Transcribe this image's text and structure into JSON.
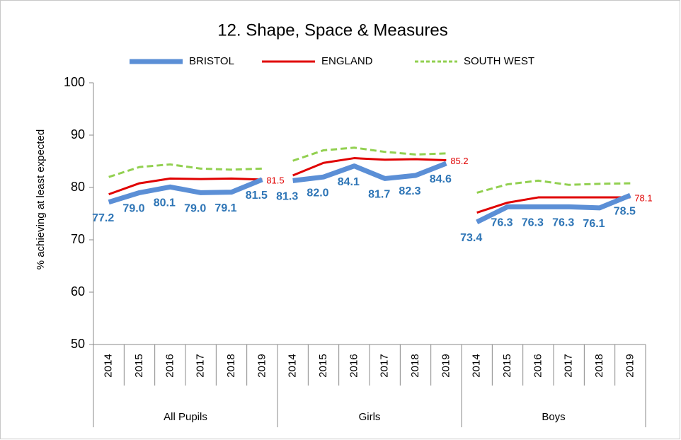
{
  "chart_data": {
    "type": "line",
    "title": "12. Shape, Space & Measures",
    "y_label": "% achieving at least expected",
    "groups": [
      "All Pupils",
      "Girls",
      "Boys"
    ],
    "categories": [
      [
        "2014",
        "2015",
        "2016",
        "2017",
        "2018",
        "2019"
      ],
      [
        "2014",
        "2015",
        "2016",
        "2017",
        "2018",
        "2019"
      ],
      [
        "2014",
        "2015",
        "2016",
        "2017",
        "2018",
        "2019"
      ]
    ],
    "series": [
      {
        "name": "BRISTOL",
        "color": "#5b8fd6",
        "style": "solid",
        "width": 7,
        "values": [
          [
            77.2,
            79.0,
            80.1,
            79.0,
            79.1,
            81.5
          ],
          [
            81.3,
            82.0,
            84.1,
            81.7,
            82.3,
            84.6
          ],
          [
            73.4,
            76.3,
            76.3,
            76.3,
            76.1,
            78.5
          ]
        ],
        "value_labels": [
          [
            "77.2",
            "79.0",
            "80.1",
            "79.0",
            "79.1",
            "81.5"
          ],
          [
            "81.3",
            "82.0",
            "84.1",
            "81.7",
            "82.3",
            "84.6"
          ],
          [
            "73.4",
            "76.3",
            "76.3",
            "76.3",
            "76.1",
            "78.5"
          ]
        ]
      },
      {
        "name": "ENGLAND",
        "color": "#e00000",
        "style": "solid",
        "width": 3,
        "values": [
          [
            78.7,
            80.8,
            81.7,
            81.6,
            81.7,
            81.5
          ],
          [
            82.3,
            84.7,
            85.6,
            85.3,
            85.4,
            85.2
          ],
          [
            75.2,
            77.1,
            78.1,
            78.1,
            78.1,
            78.1
          ]
        ],
        "value_labels": [
          [
            null,
            null,
            null,
            null,
            null,
            "81.5"
          ],
          [
            null,
            null,
            null,
            null,
            null,
            "85.2"
          ],
          [
            null,
            null,
            null,
            null,
            null,
            "78.1"
          ]
        ]
      },
      {
        "name": "SOUTH WEST",
        "color": "#92d050",
        "style": "dashed",
        "width": 3,
        "values": [
          [
            82.0,
            83.9,
            84.4,
            83.6,
            83.4,
            83.6
          ],
          [
            85.1,
            87.1,
            87.6,
            86.8,
            86.3,
            86.5
          ],
          [
            79.0,
            80.6,
            81.3,
            80.5,
            80.7,
            80.8
          ]
        ]
      }
    ],
    "ylim": [
      50,
      100
    ],
    "yticks": [
      50,
      60,
      70,
      80,
      90,
      100
    ],
    "grid": false
  }
}
